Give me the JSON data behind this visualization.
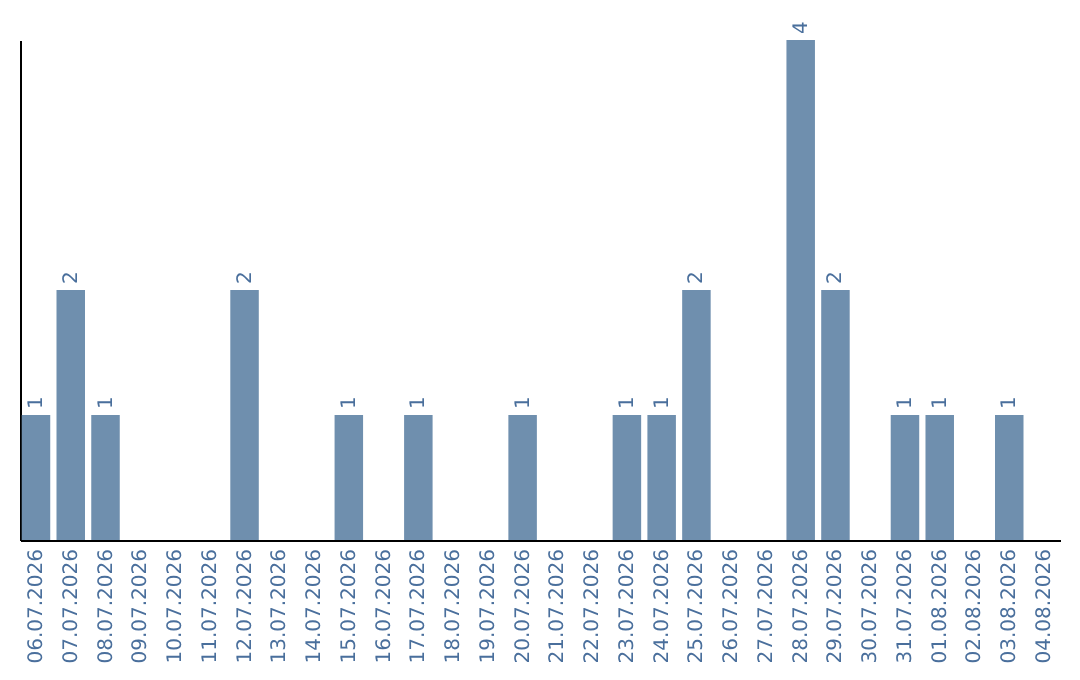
{
  "chart_data": {
    "type": "bar",
    "categories": [
      "06.07.2026",
      "07.07.2026",
      "08.07.2026",
      "09.07.2026",
      "10.07.2026",
      "11.07.2026",
      "12.07.2026",
      "13.07.2026",
      "14.07.2026",
      "15.07.2026",
      "16.07.2026",
      "17.07.2026",
      "18.07.2026",
      "19.07.2026",
      "20.07.2026",
      "21.07.2026",
      "22.07.2026",
      "23.07.2026",
      "24.07.2026",
      "25.07.2026",
      "26.07.2026",
      "27.07.2026",
      "28.07.2026",
      "29.07.2026",
      "30.07.2026",
      "31.07.2026",
      "01.08.2026",
      "02.08.2026",
      "03.08.2026",
      "04.08.2026"
    ],
    "values": [
      1,
      2,
      1,
      null,
      null,
      null,
      2,
      null,
      null,
      1,
      null,
      1,
      null,
      null,
      1,
      null,
      null,
      1,
      1,
      2,
      null,
      null,
      4,
      2,
      null,
      1,
      1,
      null,
      1,
      null
    ],
    "color": "#6f8fae",
    "data_labels": true,
    "tick_labels": "x"
  }
}
